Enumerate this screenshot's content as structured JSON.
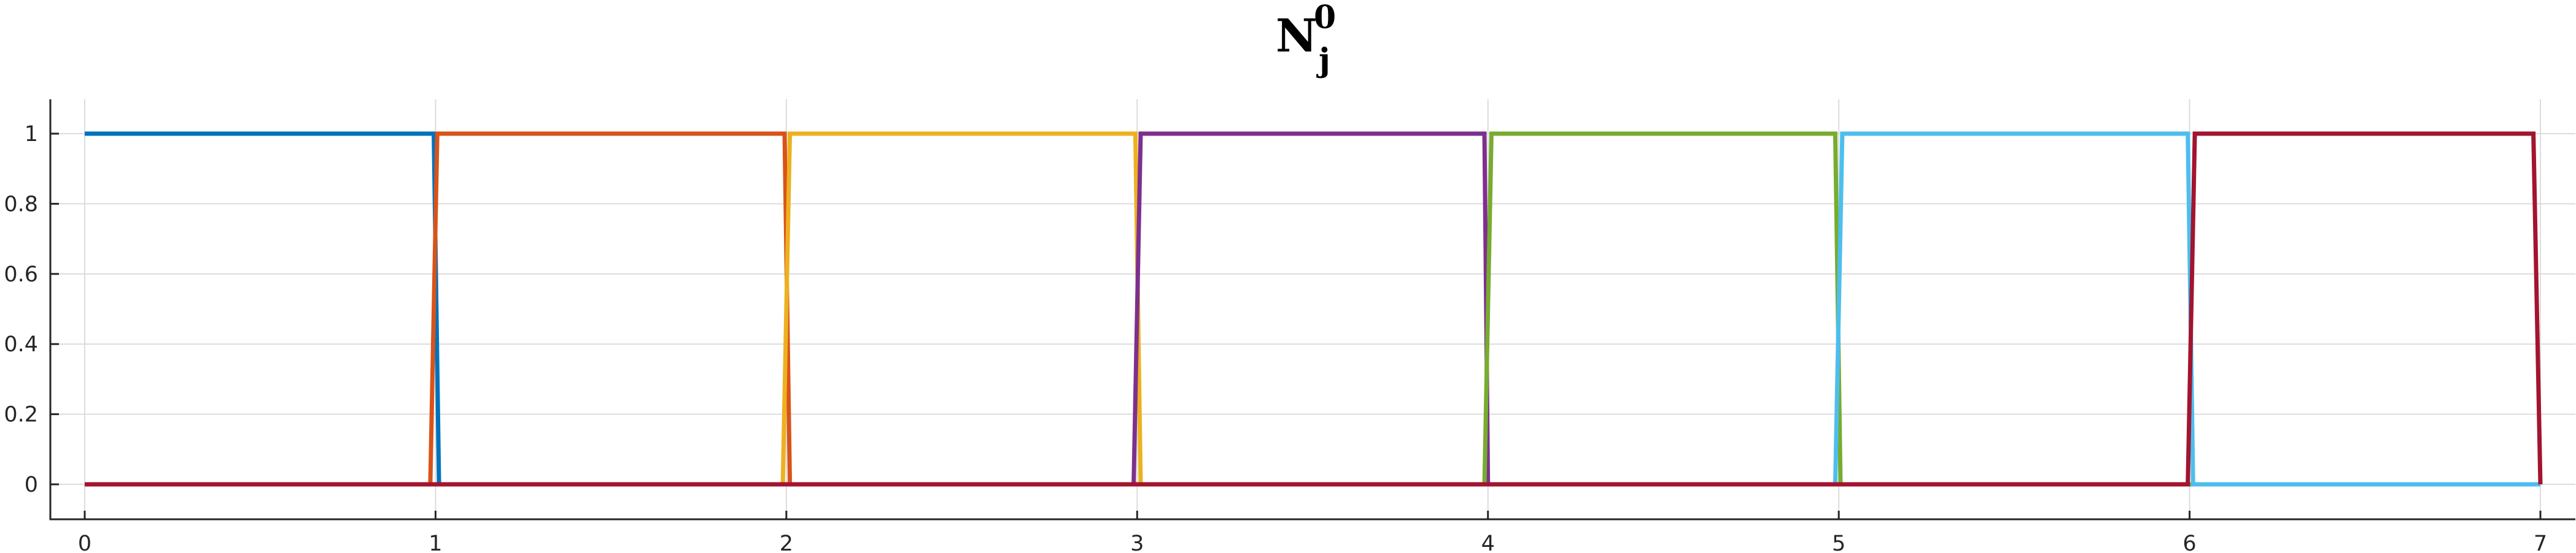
{
  "chart_data": {
    "type": "line",
    "title": {
      "base": "N",
      "superscript": "0",
      "subscript": "j"
    },
    "xlabel": "",
    "ylabel": "",
    "xlim": [
      0,
      7
    ],
    "ylim": [
      -0.1,
      1.1
    ],
    "grid": true,
    "x_ticks": [
      "0",
      "1",
      "2",
      "3",
      "4",
      "5",
      "6",
      "7"
    ],
    "y_ticks": [
      "0",
      "0.2",
      "0.4",
      "0.6",
      "0.8",
      "1"
    ],
    "series": [
      {
        "color": "#0072BD",
        "x": [
          0,
          0.995,
          1.01,
          7
        ],
        "y": [
          1,
          1,
          0,
          0
        ]
      },
      {
        "color": "#D95319",
        "x": [
          0,
          0.985,
          1.005,
          1.995,
          2.01,
          7
        ],
        "y": [
          0,
          0,
          1,
          1,
          0,
          0
        ]
      },
      {
        "color": "#EDB120",
        "x": [
          0,
          1.99,
          2.01,
          2.995,
          3.01,
          7
        ],
        "y": [
          0,
          0,
          1,
          1,
          0,
          0
        ]
      },
      {
        "color": "#7E2F8E",
        "x": [
          0,
          2.99,
          3.01,
          3.99,
          4.0,
          7
        ],
        "y": [
          0,
          0,
          1,
          1,
          0,
          0
        ]
      },
      {
        "color": "#77AC30",
        "x": [
          0,
          3.99,
          4.01,
          4.99,
          5.005,
          7
        ],
        "y": [
          0,
          0,
          1,
          1,
          0,
          0
        ]
      },
      {
        "color": "#4DBEEE",
        "x": [
          0,
          4.99,
          5.01,
          5.995,
          6.01,
          7
        ],
        "y": [
          0,
          0,
          1,
          1,
          0,
          0
        ]
      },
      {
        "color": "#A2142F",
        "x": [
          0,
          5.995,
          6.015,
          6.98,
          7.0
        ],
        "y": [
          0,
          0,
          1,
          1,
          0
        ]
      }
    ]
  }
}
